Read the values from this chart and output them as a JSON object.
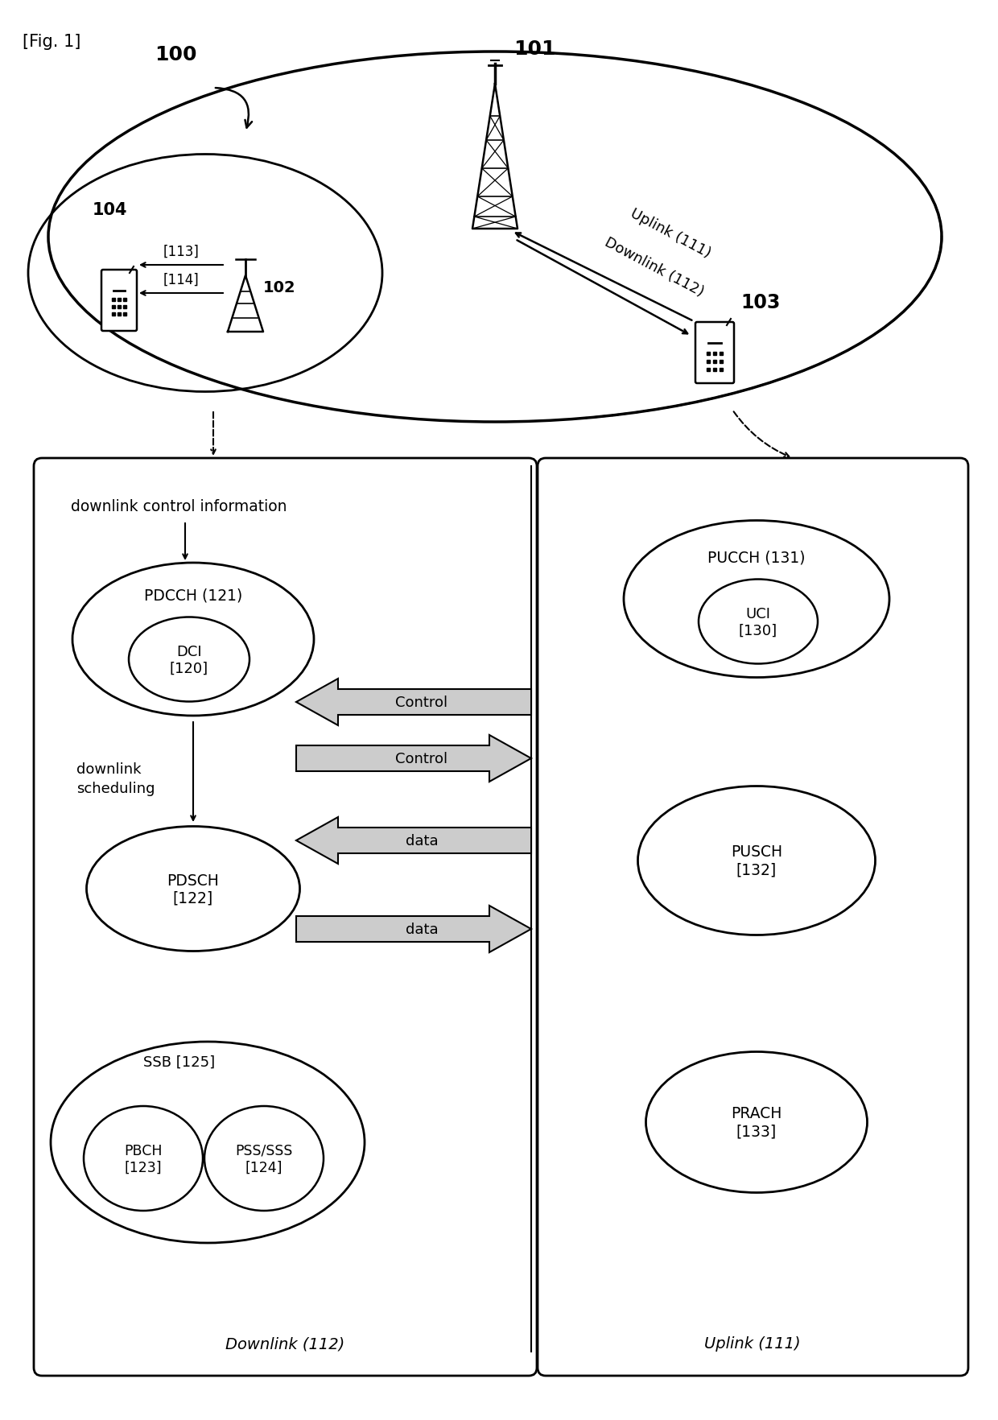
{
  "fig_label": "[Fig. 1]",
  "bg_color": "#ffffff",
  "labels": {
    "100": "100",
    "101": "101",
    "102": "102",
    "103": "103",
    "104": "104",
    "113": "[113]",
    "114": "[114]",
    "120": "DCI\n[120]",
    "121": "PDCCH (121)",
    "122": "PDSCH\n[122]",
    "123": "PBCH\n[123]",
    "124": "PSS/SSS\n[124]",
    "125": "SSB [125]",
    "130": "UCI\n[130]",
    "131": "PUCCH (131)",
    "132": "PUSCH\n[132]",
    "133": "PRACH\n[133]",
    "downlink_label": "Downlink (112)",
    "uplink_label": "Uplink (111)",
    "downlink_ctrl": "downlink control information",
    "downlink_sched": "downlink\nscheduling",
    "control": "Control",
    "data": "data",
    "uplink_diag": "Uplink (111)",
    "downlink_diag": "Downlink (112)"
  }
}
